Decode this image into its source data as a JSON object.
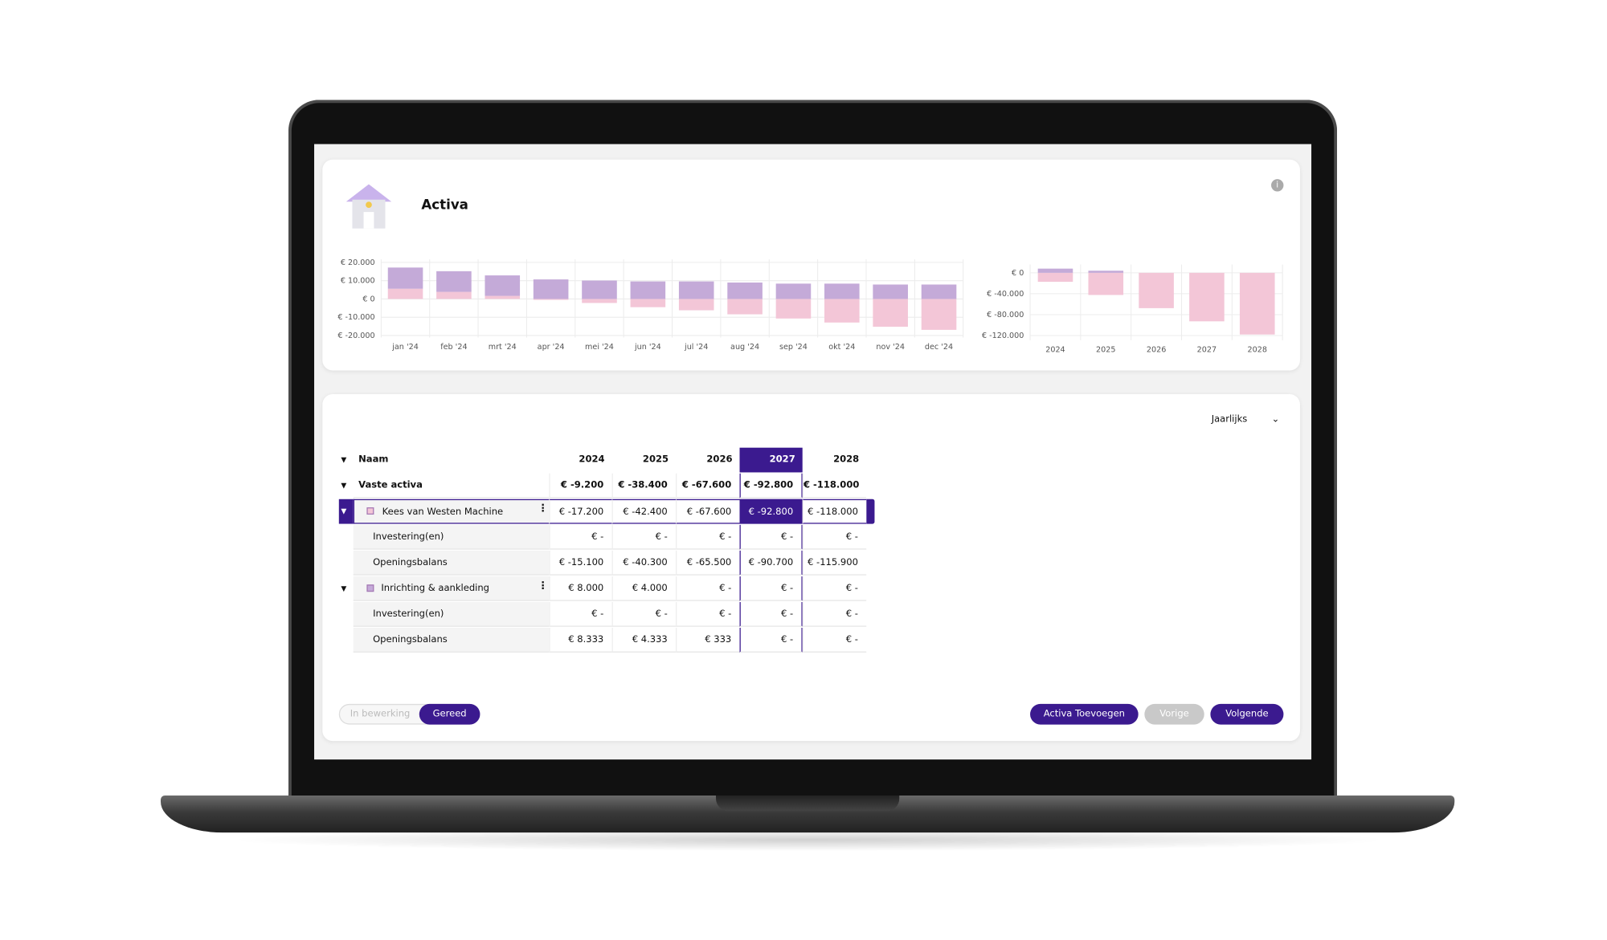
{
  "header": {
    "title": "Activa"
  },
  "chart_data": [
    {
      "type": "bar",
      "stacked": true,
      "categories": [
        "jan '24",
        "feb '24",
        "mrt '24",
        "apr '24",
        "mei '24",
        "jun '24",
        "jul '24",
        "aug '24",
        "sep '24",
        "okt '24",
        "nov '24",
        "dec '24"
      ],
      "series": [
        {
          "color": "#f3c6d7",
          "values": [
            5600,
            3900,
            1700,
            -500,
            -2200,
            -4500,
            -6200,
            -8400,
            -10700,
            -12900,
            -15200,
            -16900
          ]
        },
        {
          "color": "#c4aad8",
          "values": [
            11600,
            11300,
            11200,
            10700,
            10100,
            9600,
            9600,
            9000,
            8400,
            8400,
            7900,
            7900
          ]
        }
      ],
      "ylim": [
        -20000,
        20000
      ],
      "yticks": [
        {
          "value": 20000,
          "label": "€ 20.000"
        },
        {
          "value": 10000,
          "label": "€ 10.000"
        },
        {
          "value": 0,
          "label": "€ 0"
        },
        {
          "value": -10000,
          "label": "€ -10.000"
        },
        {
          "value": -20000,
          "label": "€ -20.000"
        }
      ],
      "grid": true
    },
    {
      "type": "bar",
      "stacked": true,
      "categories": [
        "2024",
        "2025",
        "2026",
        "2027",
        "2028"
      ],
      "series": [
        {
          "color": "#f3c6d7",
          "values": [
            -17200,
            -42400,
            -67600,
            -92800,
            -118000
          ]
        },
        {
          "color": "#c4aad8",
          "values": [
            8000,
            4000,
            0,
            0,
            0
          ]
        }
      ],
      "ylim": [
        -125000,
        10000
      ],
      "yticks": [
        {
          "value": 0,
          "label": "€ 0"
        },
        {
          "value": -40000,
          "label": "€ -40.000"
        },
        {
          "value": -80000,
          "label": "€ -80.000"
        },
        {
          "value": -120000,
          "label": "€ -120.000"
        }
      ],
      "grid": true
    }
  ],
  "view_select": "Jaarlijks",
  "table": {
    "columns": [
      "Naam",
      "2024",
      "2025",
      "2026",
      "2027",
      "2028"
    ],
    "rows": [
      [
        "Vaste activa",
        "€ -9.200",
        "€ -38.400",
        "€ -67.600",
        "€ -92.800",
        "€ -118.000"
      ],
      [
        "Kees van Westen Machine",
        "€ -17.200",
        "€ -42.400",
        "€ -67.600",
        "€ -92.800",
        "€ -118.000"
      ],
      [
        "Investering(en)",
        "€ -",
        "€ -",
        "€ -",
        "€ -",
        "€ -"
      ],
      [
        "Openingsbalans",
        "€ -15.100",
        "€ -40.300",
        "€ -65.500",
        "€ -90.700",
        "€ -115.900"
      ],
      [
        "Inrichting & aankleding",
        "€ 8.000",
        "€ 4.000",
        "€ -",
        "€ -",
        "€ -"
      ],
      [
        "Investering(en)",
        "€ -",
        "€ -",
        "€ -",
        "€ -",
        "€ -"
      ],
      [
        "Openingsbalans",
        "€ 8.333",
        "€ 4.333",
        "€ 333",
        "€ -",
        "€ -"
      ]
    ]
  },
  "status_toggle": [
    "In bewerking",
    "Gereed"
  ],
  "buttons": [
    "Activa Toevoegen",
    "Vorige",
    "Volgende"
  ]
}
